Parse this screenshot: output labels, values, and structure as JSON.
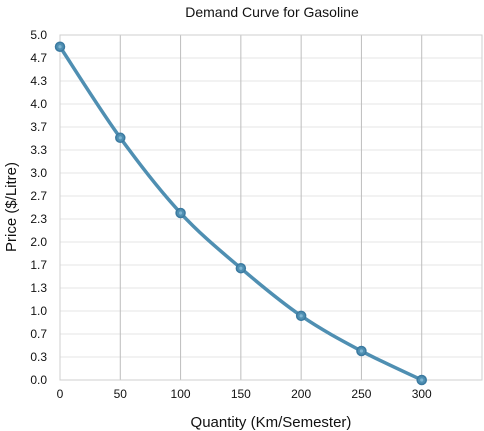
{
  "chart_data": {
    "type": "line",
    "title": "Demand Curve for Gasoline",
    "xlabel": "Quantity (Km/Semester)",
    "ylabel": "Price ($/Litre)",
    "xlim": [
      0,
      350
    ],
    "ylim": [
      0,
      5.0
    ],
    "x_ticks": [
      "0",
      "50",
      "100",
      "150",
      "200",
      "250",
      "300"
    ],
    "y_ticks": [
      "5.0",
      "4.7",
      "4.3",
      "4.0",
      "3.7",
      "3.3",
      "3.0",
      "2.7",
      "2.3",
      "2.0",
      "1.7",
      "1.3",
      "1.0",
      "0.7",
      "0.3",
      "0.0"
    ],
    "grid": true,
    "series": [
      {
        "x": [
          0,
          50,
          100,
          150,
          200,
          250,
          300
        ],
        "values": [
          4.83,
          3.51,
          2.42,
          1.62,
          0.93,
          0.42,
          0.0
        ],
        "color": "#4f8fb2"
      }
    ]
  }
}
